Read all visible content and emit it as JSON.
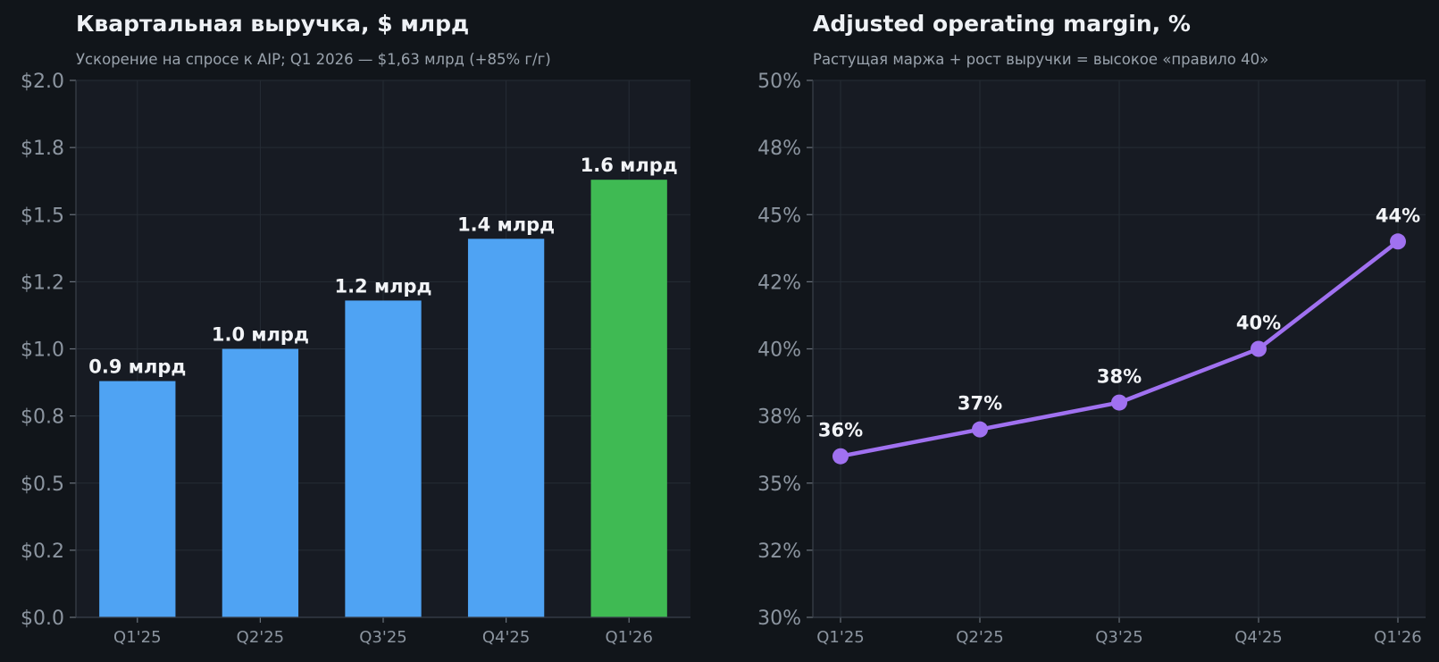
{
  "colors": {
    "page_background": "#11151a",
    "plot_background": "#171b23",
    "bar": "#4fa3f3",
    "bar_highlight": "#3fba53",
    "line": "#a071f0"
  },
  "chart_data": [
    {
      "type": "bar",
      "title": "Квартальная выручка, $ млрд",
      "subtitle": "Ускорение на спросе к AIP; Q1 2026 — $1,63 млрд (+85% г/г)",
      "categories": [
        "Q1'25",
        "Q2'25",
        "Q3'25",
        "Q4'25",
        "Q1'26"
      ],
      "values": [
        0.88,
        1.0,
        1.18,
        1.41,
        1.63
      ],
      "data_labels": [
        "0.9 млрд",
        "1.0 млрд",
        "1.2 млрд",
        "1.4 млрд",
        "1.6 млрд"
      ],
      "highlight_index": 4,
      "ylim": [
        0,
        2.0
      ],
      "yticks": [
        0,
        0.25,
        0.5,
        0.75,
        1.0,
        1.25,
        1.5,
        1.75,
        2.0
      ],
      "ytick_labels": [
        "$0.0",
        "$0.2",
        "$0.5",
        "$0.8",
        "$1.0",
        "$1.2",
        "$1.5",
        "$1.8",
        "$2.0"
      ],
      "xlabel": "",
      "ylabel": "",
      "grid": true,
      "legend": "none"
    },
    {
      "type": "line",
      "title": "Adjusted operating margin, %",
      "subtitle": "Растущая маржа + рост выручки = высокое «правило 40»",
      "categories": [
        "Q1'25",
        "Q2'25",
        "Q3'25",
        "Q4'25",
        "Q1'26"
      ],
      "values": [
        36.0,
        37.0,
        38.0,
        40.0,
        44.0
      ],
      "data_labels": [
        "36%",
        "37%",
        "38%",
        "40%",
        "44%"
      ],
      "ylim": [
        30,
        50
      ],
      "yticks": [
        30,
        32.5,
        35,
        37.5,
        40,
        42.5,
        45,
        47.5,
        50
      ],
      "ytick_labels": [
        "30%",
        "32%",
        "35%",
        "38%",
        "40%",
        "42%",
        "45%",
        "48%",
        "50%"
      ],
      "xlabel": "",
      "ylabel": "",
      "grid": true,
      "legend": "none"
    }
  ]
}
